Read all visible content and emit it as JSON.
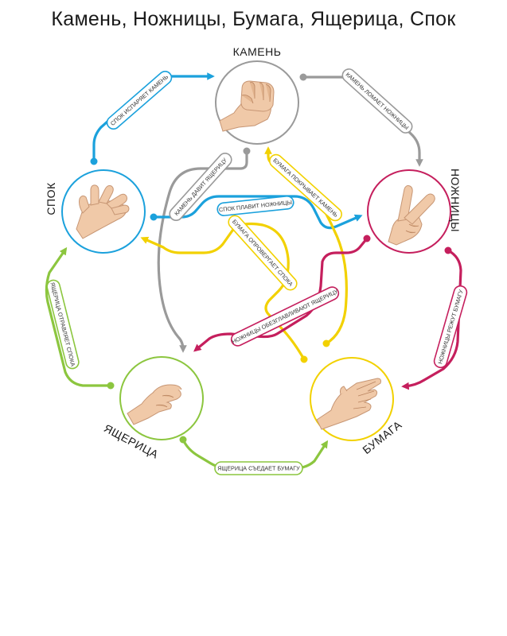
{
  "title": "Камень, Ножницы, Бумага, Ящерица, Спок",
  "colors": {
    "rock": "#9a9a9a",
    "scissors": "#c51f5d",
    "paper": "#f2d100",
    "lizard": "#8cc63f",
    "spock": "#1ba1dc",
    "skin": "#f0c9a8"
  },
  "nodes": {
    "rock": {
      "label": "КАМЕНЬ",
      "icon": "fist-hand-icon"
    },
    "scissors": {
      "label": "НОЖНИЦЫ",
      "icon": "victory-hand-icon"
    },
    "paper": {
      "label": "БУМАГА",
      "icon": "open-palm-icon"
    },
    "lizard": {
      "label": "ЯЩЕРИЦА",
      "icon": "sock-puppet-hand-icon"
    },
    "spock": {
      "label": "СПОК",
      "icon": "vulcan-salute-icon"
    }
  },
  "rules": {
    "spock_vaporizes_rock": "СПОК ИСПАРЯЕТ КАМЕНЬ",
    "rock_crushes_scissors": "КАМЕНЬ ЛОМАЕТ НОЖНИЦЫ",
    "scissors_cut_paper": "НОЖНИЦЫ РЕЖУТ БУМАГУ",
    "lizard_eats_paper": "ЯЩЕРИЦА СЪЕДАЕТ БУМАГУ",
    "lizard_poisons_spock": "ЯЩЕРИЦА ОТРАВЛЯЕТ СПОКА",
    "rock_crushes_lizard": "КАМЕНЬ ДАВИТ ЯЩЕРИЦУ",
    "paper_covers_rock": "БУМАГА ПОКРЫВАЕТ КАМЕНЬ",
    "spock_smashes_scissors": "СПОК ПЛАВИТ НОЖНИЦЫ",
    "paper_disproves_spock": "БУМАГА ОПРОВЕРГАЕТ СПОКА",
    "scissors_decapitate_lizard": "НОЖНИЦЫ ОБЕЗГЛАВЛИВАЮТ ЯЩЕРИЦУ"
  }
}
